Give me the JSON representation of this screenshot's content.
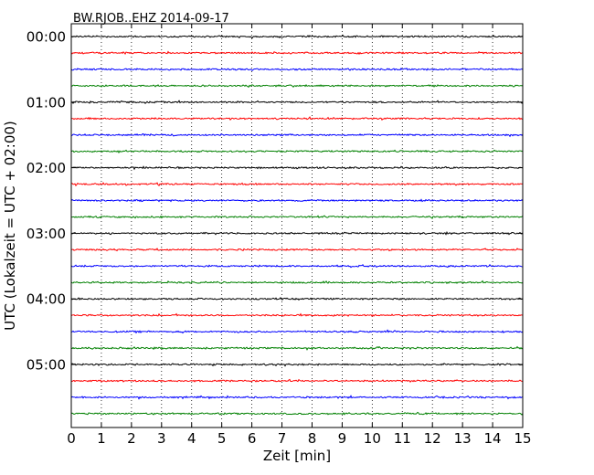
{
  "chart_data": {
    "type": "line",
    "title": "BW.RJOB..EHZ 2014-09-17",
    "xlabel": "Zeit  [min]",
    "ylabel": "UTC (Lokalzeit = UTC + 02:00)",
    "xlim": [
      0,
      15
    ],
    "x_ticks": [
      "0",
      "1",
      "2",
      "3",
      "4",
      "5",
      "6",
      "7",
      "8",
      "9",
      "10",
      "11",
      "12",
      "13",
      "14",
      "15"
    ],
    "y_tick_labels": [
      "00:00",
      "01:00",
      "02:00",
      "03:00",
      "04:00",
      "05:00"
    ],
    "grid": "vertical dotted lines at each minute",
    "trace_interval_minutes": 15,
    "trace_colors": [
      "#000000",
      "#ff0000",
      "#0000ff",
      "#008000"
    ],
    "traces": [
      {
        "start": "00:00",
        "color": "#000000"
      },
      {
        "start": "00:15",
        "color": "#ff0000"
      },
      {
        "start": "00:30",
        "color": "#0000ff"
      },
      {
        "start": "00:45",
        "color": "#008000"
      },
      {
        "start": "01:00",
        "color": "#000000"
      },
      {
        "start": "01:15",
        "color": "#ff0000"
      },
      {
        "start": "01:30",
        "color": "#0000ff"
      },
      {
        "start": "01:45",
        "color": "#008000"
      },
      {
        "start": "02:00",
        "color": "#000000"
      },
      {
        "start": "02:15",
        "color": "#ff0000"
      },
      {
        "start": "02:30",
        "color": "#0000ff"
      },
      {
        "start": "02:45",
        "color": "#008000"
      },
      {
        "start": "03:00",
        "color": "#000000"
      },
      {
        "start": "03:15",
        "color": "#ff0000"
      },
      {
        "start": "03:30",
        "color": "#0000ff"
      },
      {
        "start": "03:45",
        "color": "#008000"
      },
      {
        "start": "04:00",
        "color": "#000000"
      },
      {
        "start": "04:15",
        "color": "#ff0000"
      },
      {
        "start": "04:30",
        "color": "#0000ff"
      },
      {
        "start": "04:45",
        "color": "#008000"
      },
      {
        "start": "05:00",
        "color": "#000000"
      },
      {
        "start": "05:15",
        "color": "#ff0000"
      },
      {
        "start": "05:30",
        "color": "#0000ff"
      },
      {
        "start": "05:45",
        "color": "#008000"
      }
    ]
  }
}
